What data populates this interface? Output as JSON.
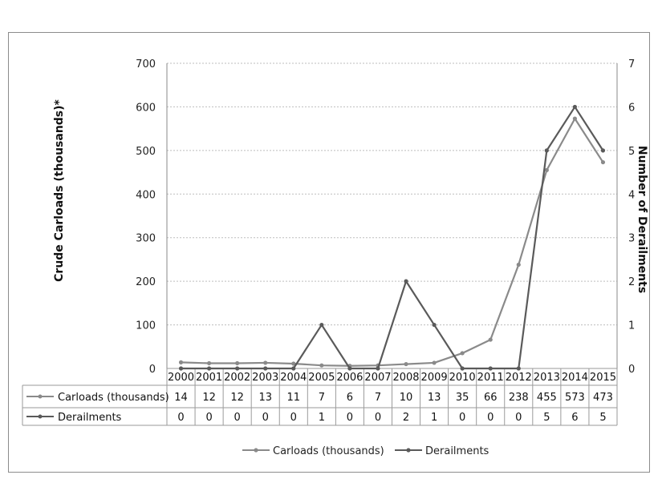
{
  "chart_data": {
    "type": "line",
    "categories": [
      "2000",
      "2001",
      "2002",
      "2003",
      "2004",
      "2005",
      "2006",
      "2007",
      "2008",
      "2009",
      "2010",
      "2011",
      "2012",
      "2013",
      "2014",
      "2015"
    ],
    "y_left": {
      "label": "Crude Carloads (thousands)*",
      "ylim": [
        0,
        700
      ],
      "ticks": [
        "0",
        "100",
        "200",
        "300",
        "400",
        "500",
        "600",
        "700"
      ]
    },
    "y_right": {
      "label": "Number of Derailments",
      "ylim": [
        0,
        7
      ],
      "ticks": [
        "0",
        "1",
        "2",
        "3",
        "4",
        "5",
        "6",
        "7"
      ]
    },
    "series": [
      {
        "name": "Carloads (thousands)",
        "axis": "left",
        "color": "#8a8a8a",
        "values": [
          14,
          12,
          12,
          13,
          11,
          7,
          6,
          7,
          10,
          13,
          35,
          66,
          238,
          455,
          573,
          473
        ]
      },
      {
        "name": "Derailments",
        "axis": "right",
        "color": "#5a5a5a",
        "values": [
          0,
          0,
          0,
          0,
          0,
          1,
          0,
          0,
          2,
          1,
          0,
          0,
          0,
          5,
          6,
          5
        ]
      }
    ],
    "grid": true,
    "legend_position": "bottom",
    "data_table": true
  }
}
